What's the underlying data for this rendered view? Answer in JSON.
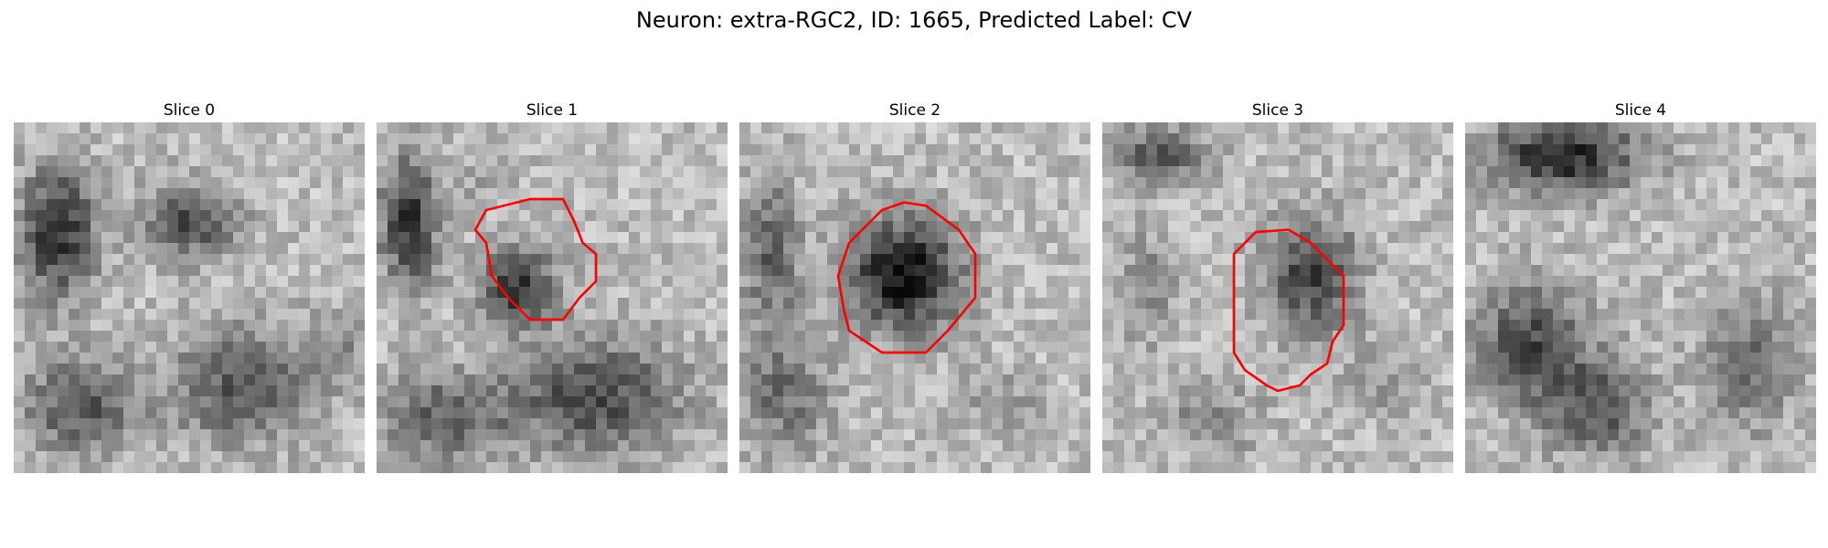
{
  "figure": {
    "title": "Neuron: extra-RGC2, ID: 1665, Predicted Label: CV",
    "contour_color": "#ff0000",
    "colormap": "gray",
    "grid_size": 32
  },
  "panels": [
    {
      "title": "Slice 0",
      "has_contour": false
    },
    {
      "title": "Slice 1",
      "has_contour": true
    },
    {
      "title": "Slice 2",
      "has_contour": true
    },
    {
      "title": "Slice 3",
      "has_contour": true
    },
    {
      "title": "Slice 4",
      "has_contour": false
    }
  ]
}
